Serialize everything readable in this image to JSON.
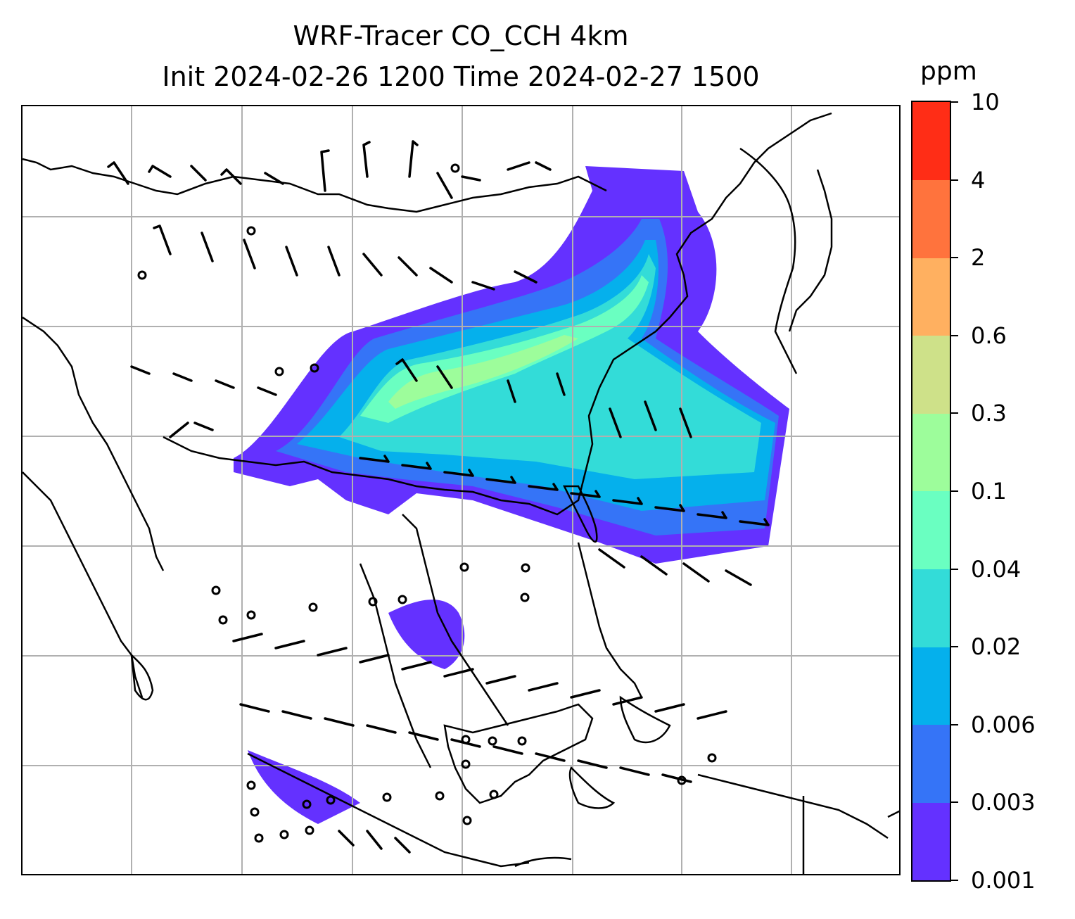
{
  "title": {
    "line1": "WRF-Tracer CO_CCH 4km",
    "line2": "Init 2024-02-26 1200 Time 2024-02-27 1500"
  },
  "colorbar": {
    "unit": "ppm",
    "levels": [
      "0.001",
      "0.003",
      "0.006",
      "0.02",
      "0.04",
      "0.1",
      "0.3",
      "0.6",
      "2",
      "4",
      "10"
    ],
    "colors": [
      "#6431ff",
      "#3574f7",
      "#05b0ec",
      "#33dcd8",
      "#6affc1",
      "#9dfd9b",
      "#cee189",
      "#ffb060",
      "#ff733d",
      "#ff2d16"
    ]
  },
  "map": {
    "gridlines": true,
    "gridline_color": "#b0b0b0",
    "coastline_color": "#000000",
    "features": [
      "coastlines",
      "country-borders",
      "wind-barbs",
      "co-tracer-plume"
    ]
  }
}
